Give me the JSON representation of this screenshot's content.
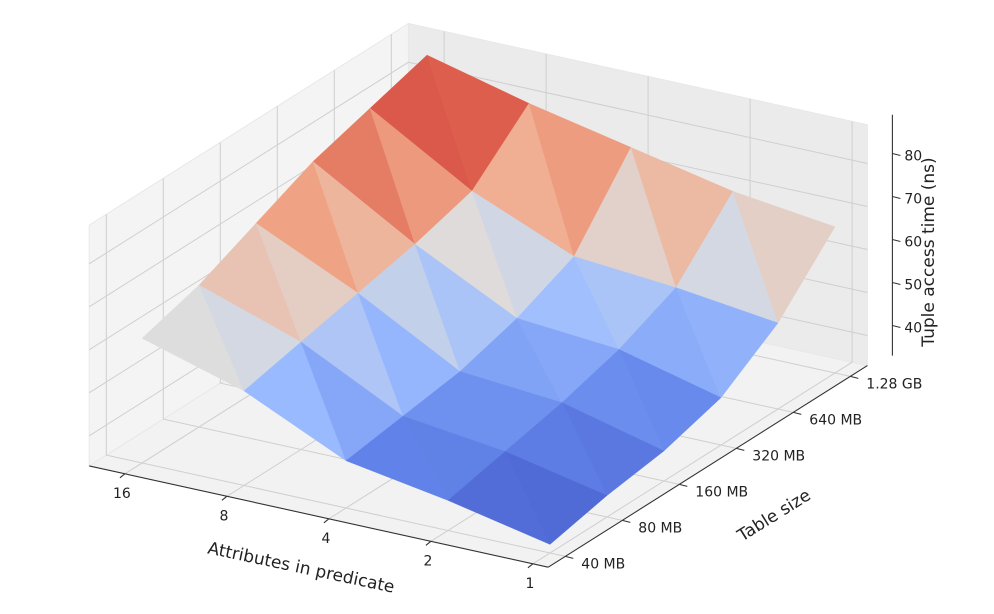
{
  "chart_data": {
    "type": "surface",
    "title": "",
    "xlabel": "Attributes in predicate",
    "ylabel": "Table size",
    "zlabel": "Tuple access time (ns)",
    "x": [
      1,
      2,
      4,
      8,
      16
    ],
    "x_tick_labels": [
      "1",
      "2",
      "4",
      "8",
      "16"
    ],
    "y": [
      "40 MB",
      "80 MB",
      "160 MB",
      "320 MB",
      "640 MB",
      "1.28 GB"
    ],
    "y_tick_labels": [
      "40 MB",
      "80 MB",
      "160 MB",
      "320 MB",
      "640 MB",
      "1.28 GB"
    ],
    "z_tick_labels": [
      "40",
      "50",
      "60",
      "70",
      "80"
    ],
    "zlim": [
      33,
      89
    ],
    "z": [
      [
        35,
        38,
        40,
        44,
        53,
        67
      ],
      [
        40,
        43,
        46,
        50,
        56,
        70
      ],
      [
        44,
        46,
        48,
        52,
        58,
        75
      ],
      [
        55,
        58,
        61,
        64,
        68,
        80
      ],
      [
        62,
        66,
        72,
        78,
        82,
        86
      ]
    ],
    "colormap": "coolwarm",
    "colors": {
      "low": "#3b4cc0",
      "mid": "#dddddd",
      "high": "#b40426"
    },
    "grid": true
  }
}
